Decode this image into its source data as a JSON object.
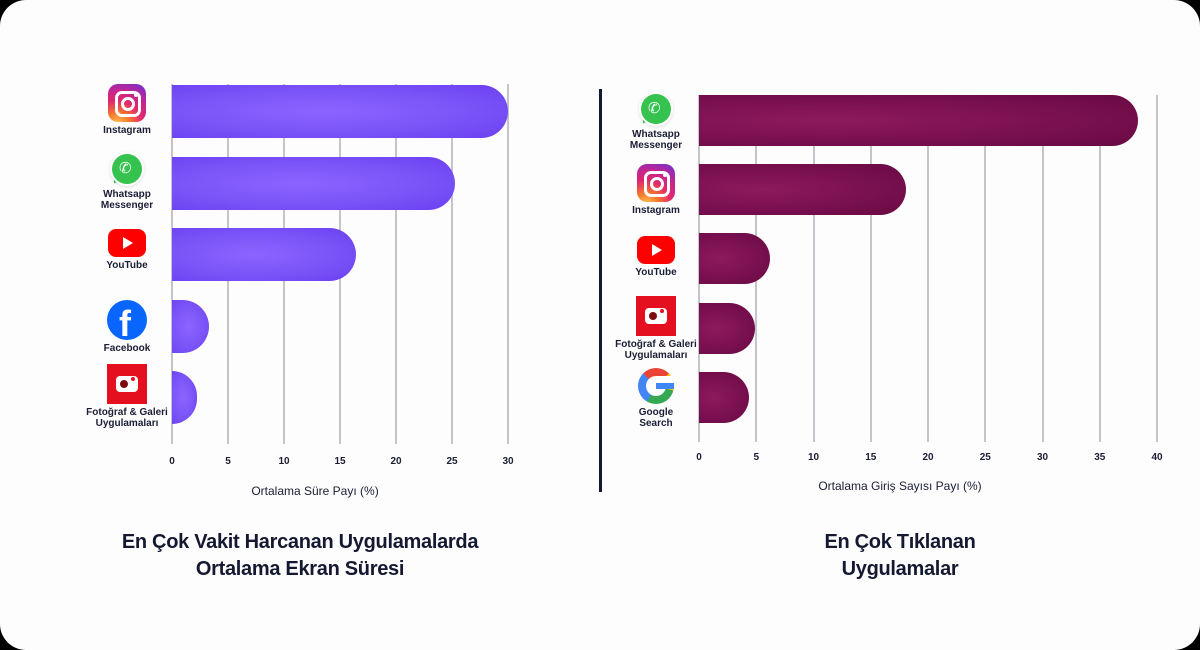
{
  "colors": {
    "left_bar": "#7b54f8",
    "right_bar": "#7a1050",
    "text": "#1a1d35",
    "divider": "#141830"
  },
  "left": {
    "caption_line1": "En Çok Vakit Harcanan Uygulamalarda",
    "caption_line2": "Ortalama Ekran Süresi",
    "axis_title": "Ortalama Süre Payı (%)",
    "ticks": [
      "0",
      "5",
      "10",
      "15",
      "20",
      "25",
      "30"
    ],
    "apps": [
      {
        "label1": "Instagram",
        "label2": "",
        "icon": "instagram-icon"
      },
      {
        "label1": "Whatsapp",
        "label2": "Messenger",
        "icon": "whatsapp-icon"
      },
      {
        "label1": "YouTube",
        "label2": "",
        "icon": "youtube-icon"
      },
      {
        "label1": "Facebook",
        "label2": "",
        "icon": "facebook-icon"
      },
      {
        "label1": "Fotoğraf & Galeri",
        "label2": "Uygulamaları",
        "icon": "photo-gallery-icon"
      }
    ]
  },
  "right": {
    "caption_line1": "En Çok Tıklanan",
    "caption_line2": "Uygulamalar",
    "axis_title": "Ortalama Giriş Sayısı Payı (%)",
    "ticks": [
      "0",
      "5",
      "10",
      "15",
      "20",
      "25",
      "30",
      "35",
      "40"
    ],
    "apps": [
      {
        "label1": "Whatsapp",
        "label2": "Messenger",
        "icon": "whatsapp-icon"
      },
      {
        "label1": "Instagram",
        "label2": "",
        "icon": "instagram-icon"
      },
      {
        "label1": "YouTube",
        "label2": "",
        "icon": "youtube-icon"
      },
      {
        "label1": "Fotoğraf & Galeri",
        "label2": "Uygulamaları",
        "icon": "photo-gallery-icon"
      },
      {
        "label1": "Google",
        "label2": "Search",
        "icon": "google-icon"
      }
    ]
  },
  "chart_data": [
    {
      "type": "bar",
      "orientation": "horizontal",
      "title": "En Çok Vakit Harcanan Uygulamalarda Ortalama Ekran Süresi",
      "categories": [
        "Instagram",
        "Whatsapp Messenger",
        "YouTube",
        "Facebook",
        "Fotoğraf & Galeri Uygulamaları"
      ],
      "values": [
        30,
        25.3,
        16.4,
        3.3,
        2.2
      ],
      "xlabel": "Ortalama Süre Payı (%)",
      "ylabel": "",
      "xlim": [
        0,
        30
      ],
      "xticks": [
        0,
        5,
        10,
        15,
        20,
        25,
        30
      ],
      "grid": true,
      "color": "#7b54f8"
    },
    {
      "type": "bar",
      "orientation": "horizontal",
      "title": "En Çok Tıklanan Uygulamalar",
      "categories": [
        "Whatsapp Messenger",
        "Instagram",
        "YouTube",
        "Fotoğraf & Galeri Uygulamaları",
        "Google Search"
      ],
      "values": [
        38.3,
        18.1,
        6.2,
        4.9,
        4.4
      ],
      "xlabel": "Ortalama Giriş Sayısı Payı (%)",
      "ylabel": "",
      "xlim": [
        0,
        40
      ],
      "xticks": [
        0,
        5,
        10,
        15,
        20,
        25,
        30,
        35,
        40
      ],
      "grid": true,
      "color": "#7a1050"
    }
  ]
}
